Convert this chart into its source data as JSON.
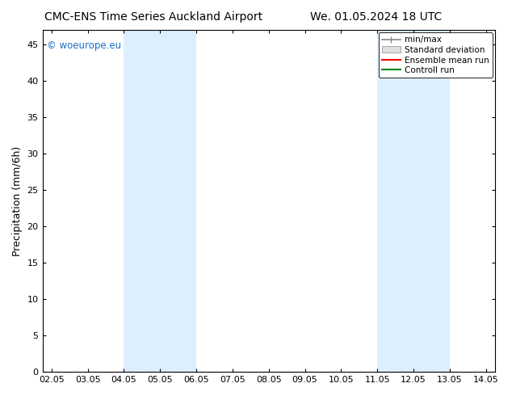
{
  "title_left": "CMC-ENS Time Series Auckland Airport",
  "title_right": "We. 01.05.2024 18 UTC",
  "ylabel": "Precipitation (mm/6h)",
  "watermark": "© woeurope.eu",
  "watermark_color": "#1a6ec7",
  "xlim": [
    1.75,
    14.25
  ],
  "ylim": [
    0,
    47
  ],
  "yticks": [
    0,
    5,
    10,
    15,
    20,
    25,
    30,
    35,
    40,
    45
  ],
  "xtick_labels": [
    "02.05",
    "03.05",
    "04.05",
    "05.05",
    "06.05",
    "07.05",
    "08.05",
    "09.05",
    "10.05",
    "11.05",
    "12.05",
    "13.05",
    "14.05"
  ],
  "xtick_positions": [
    2,
    3,
    4,
    5,
    6,
    7,
    8,
    9,
    10,
    11,
    12,
    13,
    14
  ],
  "shaded_bands": [
    {
      "xmin": 4.0,
      "xmax": 6.0,
      "color": "#ddeeff"
    },
    {
      "xmin": 11.0,
      "xmax": 13.0,
      "color": "#ddeeff"
    }
  ],
  "legend_labels": [
    "min/max",
    "Standard deviation",
    "Ensemble mean run",
    "Controll run"
  ],
  "legend_colors_line": [
    "#888888",
    "#bbbbbb",
    "#ff0000",
    "#008800"
  ],
  "bg_color": "#ffffff",
  "plot_bg_color": "#ffffff",
  "title_fontsize": 10,
  "tick_fontsize": 8,
  "ylabel_fontsize": 9
}
